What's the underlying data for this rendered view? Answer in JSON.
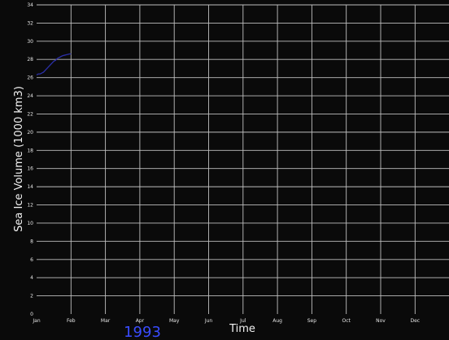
{
  "colors": {
    "background": "#0a0a0a",
    "grid": "#bfbfbf",
    "text": "#f2f2f2",
    "line": "#2b2fa8",
    "year": "#3a4cff"
  },
  "chart_data": {
    "type": "line",
    "xlabel": "Time",
    "ylabel": "Sea Ice Volume (1000 km3)",
    "ylim": [
      0,
      34
    ],
    "yticks": [
      0,
      2,
      4,
      6,
      8,
      10,
      12,
      14,
      16,
      18,
      20,
      22,
      24,
      26,
      28,
      30,
      32,
      34
    ],
    "xticks": [
      "Jan",
      "Feb",
      "Mar",
      "Apr",
      "May",
      "Jun",
      "Jul",
      "Aug",
      "Sep",
      "Oct",
      "Nov",
      "Dec"
    ],
    "grid": true,
    "year_label": "1993",
    "series": [
      {
        "x": [
          0,
          0.05,
          0.1,
          0.15,
          0.2,
          0.25,
          0.3,
          0.35,
          0.4,
          0.45,
          0.5,
          0.55,
          0.6,
          0.65,
          0.7,
          0.75,
          0.8,
          0.85,
          0.9,
          0.95,
          1.0
        ],
        "values": [
          26.3,
          26.4,
          26.4,
          26.5,
          26.6,
          26.8,
          27.0,
          27.2,
          27.4,
          27.6,
          27.8,
          27.9,
          28.1,
          28.2,
          28.3,
          28.4,
          28.45,
          28.5,
          28.55,
          28.6,
          28.6
        ]
      }
    ]
  }
}
